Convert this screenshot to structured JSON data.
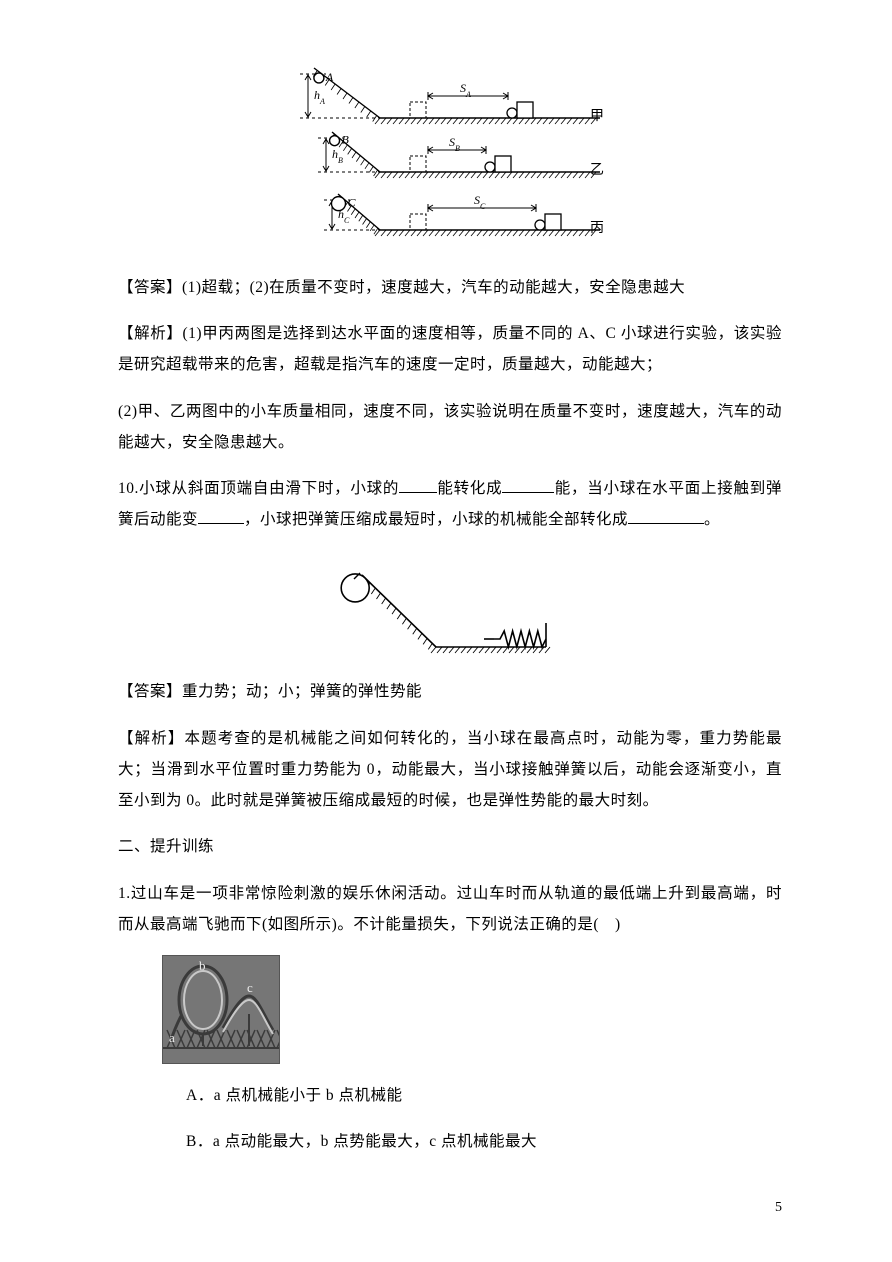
{
  "fig_ramps": {
    "rows": [
      {
        "ball": "A",
        "h": "h_A",
        "s": "S_A",
        "right": "甲",
        "ball_r": 5
      },
      {
        "ball": "B",
        "h": "h_B",
        "s": "S_B",
        "right": "乙",
        "ball_r": 5
      },
      {
        "ball": "C",
        "h": "h_C",
        "s": "S_C",
        "right": "丙",
        "ball_r": 7
      }
    ],
    "stroke": "#000000"
  },
  "answer9": "【答案】(1)超载；(2)在质量不变时，速度越大，汽车的动能越大，安全隐患越大",
  "explain9_p1": "【解析】(1)甲丙两图是选择到达水平面的速度相等，质量不同的 A、C 小球进行实验，该实验是研究超载带来的危害，超载是指汽车的速度一定时，质量越大，动能越大；",
  "explain9_p2": "(2)甲、乙两图中的小车质量相同，速度不同，该实验说明在质量不变时，速度越大，汽车的动能越大，安全隐患越大。",
  "q10": {
    "pre": "10.小球从斜面顶端自由滑下时，小球的",
    "mid1": "能转化成",
    "mid2": "能，当小球在水平面上接触到弹簧后动能变",
    "mid3": "，小球把弹簧压缩成最短时，小球的机械能全部转化成",
    "tail": "。",
    "blank_w": [
      38,
      52,
      46,
      76
    ]
  },
  "fig_spring": {
    "stroke": "#000000"
  },
  "answer10": "【答案】重力势；动；小；弹簧的弹性势能",
  "explain10": "【解析】本题考查的是机械能之间如何转化的，当小球在最高点时，动能为零，重力势能最大；当滑到水平位置时重力势能为 0，动能最大，当小球接触弹簧以后，动能会逐渐变小，直至小到为 0。此时就是弹簧被压缩成最短的时候，也是弹性势能的最大时刻。",
  "section2": "二、提升训练",
  "q1_p1": "1.过山车是一项非常惊险刺激的娱乐休闲活动。过山车时而从轨道的最低端上升到最高端，时而从最高端飞驰而下(如图所示)。不计能量损失，下列说法正确的是(　)",
  "coaster": {
    "w": 116,
    "h": 96,
    "bg": "#767676",
    "labels": [
      "b",
      "c",
      "a"
    ],
    "stroke": "#3a3a3a",
    "light": "#c9c9c9"
  },
  "options": {
    "A": "A．a 点机械能小于 b 点机械能",
    "B": "B．a 点动能最大，b 点势能最大，c 点机械能最大"
  },
  "page_number": "5"
}
